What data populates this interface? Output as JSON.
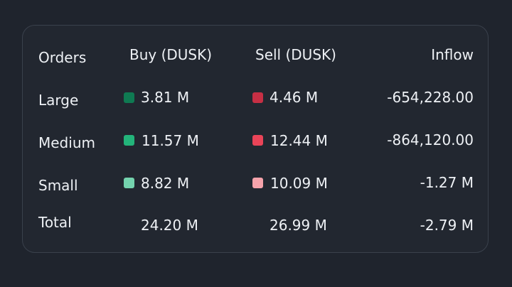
{
  "table": {
    "headers": {
      "orders": "Orders",
      "buy": "Buy (DUSK)",
      "sell": "Sell (DUSK)",
      "inflow": "Inflow"
    },
    "rows": [
      {
        "label": "Large",
        "buy": "3.81 M",
        "sell": "4.46 M",
        "inflow": "-654,228.00",
        "buy_color": "#0f7a52",
        "sell_color": "#c62f44"
      },
      {
        "label": "Medium",
        "buy": "11.57 M",
        "sell": "12.44 M",
        "inflow": "-864,120.00",
        "buy_color": "#23b47a",
        "sell_color": "#ea4458"
      },
      {
        "label": "Small",
        "buy": "8.82 M",
        "sell": "10.09 M",
        "inflow": "-1.27 M",
        "buy_color": "#74d3ae",
        "sell_color": "#f6a3ab"
      }
    ],
    "total": {
      "label": "Total",
      "buy": "24.20 M",
      "sell": "26.99 M",
      "inflow": "-2.79 M"
    }
  }
}
